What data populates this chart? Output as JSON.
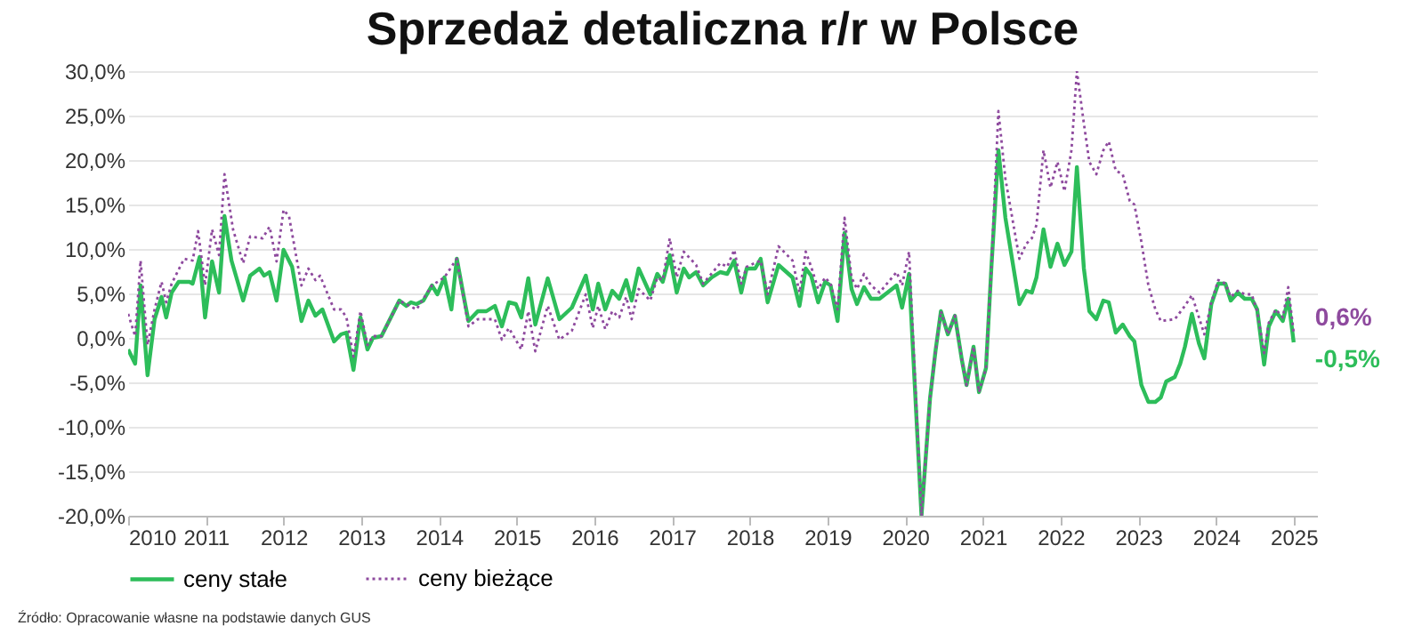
{
  "chart_data": {
    "type": "line",
    "title": "Sprzedaż detaliczna r/r w Polsce",
    "annotations": [
      {
        "text": "-0,5%",
        "x": 2025.0,
        "y": -0.5
      },
      {
        "text": "0,6%",
        "x": 2025.0,
        "y": 0.6
      },
      "Źródło:  Opracowanie własne na podstawie danych GUS"
    ],
    "xlim": [
      2010,
      2025.3
    ],
    "xticks": [
      2010,
      2011,
      2012,
      2013,
      2014,
      2015,
      2016,
      2017,
      2018,
      2019,
      2020,
      2021,
      2022,
      2023,
      2024,
      2025
    ],
    "ylim": [
      -20,
      30
    ],
    "yticks": [
      {
        "value": -20,
        "label": "-20,0%"
      },
      {
        "value": -15,
        "label": "-15,0%"
      },
      {
        "value": -10,
        "label": "-10,0%"
      },
      {
        "value": -5,
        "label": "-5,0%"
      },
      {
        "value": 0,
        "label": "0,0%"
      },
      {
        "value": 5,
        "label": "5,0%"
      },
      {
        "value": 10,
        "label": "10,0%"
      },
      {
        "value": 15,
        "label": "15,0%"
      },
      {
        "value": 20,
        "label": "20,0%"
      },
      {
        "value": 25,
        "label": "25,0%"
      },
      {
        "value": 30,
        "label": "30,0%"
      }
    ],
    "grid": "y",
    "legend": "bottom",
    "marker": "none",
    "series": [
      {
        "name": "ceny stałe",
        "color": "#2dbd5a",
        "line_style": "solid",
        "x": [
          2010.0,
          2010.09,
          2010.16,
          2010.25,
          2010.34,
          2010.43,
          2010.49,
          2010.56,
          2010.65,
          2010.79,
          2010.83,
          2010.92,
          2010.99,
          2011.08,
          2011.17,
          2011.24,
          2011.33,
          2011.48,
          2011.57,
          2011.69,
          2011.75,
          2011.82,
          2011.91,
          2012.0,
          2012.11,
          2012.23,
          2012.32,
          2012.41,
          2012.5,
          2012.65,
          2012.74,
          2012.81,
          2012.9,
          2012.99,
          2013.08,
          2013.15,
          2013.26,
          2013.49,
          2013.58,
          2013.64,
          2013.71,
          2013.8,
          2013.91,
          2013.98,
          2014.07,
          2014.16,
          2014.23,
          2014.32,
          2014.38,
          2014.5,
          2014.61,
          2014.72,
          2014.81,
          2014.9,
          2014.99,
          2015.06,
          2015.15,
          2015.24,
          2015.4,
          2015.55,
          2015.71,
          2015.89,
          2015.98,
          2016.05,
          2016.14,
          2016.23,
          2016.32,
          2016.41,
          2016.48,
          2016.57,
          2016.72,
          2016.81,
          2016.88,
          2016.97,
          2017.06,
          2017.15,
          2017.22,
          2017.31,
          2017.4,
          2017.51,
          2017.62,
          2017.71,
          2017.8,
          2017.89,
          2017.96,
          2018.07,
          2018.14,
          2018.23,
          2018.37,
          2018.55,
          2018.64,
          2018.72,
          2018.79,
          2018.88,
          2018.97,
          2019.04,
          2019.13,
          2019.22,
          2019.31,
          2019.38,
          2019.47,
          2019.56,
          2019.67,
          2019.89,
          2019.96,
          2020.05,
          2020.21,
          2020.32,
          2020.39,
          2020.46,
          2020.55,
          2020.64,
          2020.73,
          2020.79,
          2020.88,
          2020.95,
          2021.04,
          2021.11,
          2021.2,
          2021.29,
          2021.47,
          2021.56,
          2021.63,
          2021.69,
          2021.78,
          2021.87,
          2021.96,
          2022.05,
          2022.14,
          2022.21,
          2022.3,
          2022.37,
          2022.46,
          2022.55,
          2022.62,
          2022.71,
          2022.8,
          2022.89,
          2022.95,
          2023.04,
          2023.13,
          2023.22,
          2023.29,
          2023.36,
          2023.47,
          2023.54,
          2023.6,
          2023.69,
          2023.78,
          2023.85,
          2023.94,
          2024.03,
          2024.12,
          2024.19,
          2024.28,
          2024.37,
          2024.46,
          2024.53,
          2024.62,
          2024.68,
          2024.77,
          2024.86,
          2024.93,
          2025.0
        ],
        "values": [
          -1.3,
          -2.9,
          5.9,
          -4.2,
          2.1,
          4.6,
          2.3,
          5.1,
          6.3,
          6.3,
          6.1,
          9.1,
          2.3,
          8.6,
          5.1,
          13.7,
          8.7,
          4.2,
          7.0,
          7.8,
          7.0,
          7.4,
          4.2,
          9.9,
          8.0,
          1.9,
          4.2,
          2.5,
          3.2,
          -0.4,
          0.4,
          0.6,
          -3.6,
          2.3,
          -1.3,
          0,
          0.2,
          4.2,
          3.6,
          4.0,
          3.8,
          4.2,
          5.9,
          4.9,
          6.8,
          3.2,
          8.9,
          4.6,
          1.9,
          3.0,
          3.0,
          3.6,
          1.3,
          4.0,
          3.8,
          2.3,
          6.7,
          1.5,
          6.7,
          2.1,
          3.4,
          7.0,
          3.2,
          6.1,
          3.2,
          5.3,
          4.4,
          6.5,
          4.2,
          7.8,
          4.9,
          7.2,
          6.3,
          9.3,
          5.1,
          7.8,
          6.8,
          7.4,
          5.9,
          6.8,
          7.4,
          7.2,
          8.7,
          5.1,
          7.8,
          7.8,
          8.9,
          4.0,
          8.2,
          6.8,
          3.6,
          7.8,
          7.0,
          4.0,
          6.3,
          5.9,
          1.9,
          11.8,
          5.5,
          3.8,
          5.7,
          4.4,
          4.4,
          5.9,
          3.4,
          7.2,
          -20.0,
          -6.8,
          -1.5,
          3.0,
          0.4,
          2.5,
          -2.5,
          -5.3,
          -1.0,
          -6.1,
          -3.4,
          8.0,
          21.1,
          13.5,
          3.8,
          5.3,
          5.1,
          6.8,
          12.2,
          8.0,
          10.6,
          8.2,
          9.7,
          19.2,
          7.8,
          3.0,
          2.1,
          4.2,
          4.0,
          0.6,
          1.5,
          0.2,
          -0.4,
          -5.3,
          -7.2,
          -7.2,
          -6.7,
          -4.9,
          -4.4,
          -2.9,
          -1.0,
          2.7,
          -0.6,
          -2.3,
          3.8,
          6.1,
          6.1,
          4.2,
          5.1,
          4.4,
          4.4,
          3.2,
          -3.0,
          1.3,
          3.0,
          1.9,
          4.4,
          -0.5
        ]
      },
      {
        "name": "ceny bieżące",
        "color": "#8e4a9e",
        "line_style": "dotted",
        "x": [
          2010.0,
          2010.09,
          2010.16,
          2010.25,
          2010.34,
          2010.43,
          2010.49,
          2010.56,
          2010.72,
          2010.83,
          2010.9,
          2010.99,
          2011.08,
          2011.17,
          2011.24,
          2011.35,
          2011.48,
          2011.57,
          2011.73,
          2011.82,
          2011.91,
          2012.0,
          2012.07,
          2012.23,
          2012.32,
          2012.41,
          2012.47,
          2012.65,
          2012.74,
          2012.81,
          2012.9,
          2012.99,
          2013.08,
          2013.15,
          2013.26,
          2013.49,
          2013.71,
          2013.91,
          2014.07,
          2014.23,
          2014.38,
          2014.5,
          2014.72,
          2014.81,
          2014.9,
          2015.06,
          2015.15,
          2015.24,
          2015.4,
          2015.55,
          2015.71,
          2015.89,
          2015.98,
          2016.05,
          2016.14,
          2016.23,
          2016.32,
          2016.41,
          2016.48,
          2016.57,
          2016.72,
          2016.81,
          2016.88,
          2016.97,
          2017.06,
          2017.15,
          2017.31,
          2017.4,
          2017.62,
          2017.71,
          2017.8,
          2017.89,
          2017.96,
          2018.14,
          2018.23,
          2018.37,
          2018.55,
          2018.64,
          2018.72,
          2018.79,
          2018.88,
          2018.97,
          2019.04,
          2019.13,
          2019.22,
          2019.31,
          2019.38,
          2019.47,
          2019.56,
          2019.67,
          2019.89,
          2019.96,
          2020.05,
          2020.21,
          2020.32,
          2020.39,
          2020.46,
          2020.55,
          2020.64,
          2020.73,
          2020.79,
          2020.88,
          2020.95,
          2021.04,
          2021.11,
          2021.2,
          2021.29,
          2021.47,
          2021.56,
          2021.63,
          2021.69,
          2021.78,
          2021.87,
          2021.96,
          2022.05,
          2022.14,
          2022.21,
          2022.3,
          2022.37,
          2022.46,
          2022.55,
          2022.62,
          2022.71,
          2022.8,
          2022.89,
          2022.95,
          2023.04,
          2023.13,
          2023.22,
          2023.29,
          2023.47,
          2023.6,
          2023.69,
          2023.85,
          2023.94,
          2024.03,
          2024.12,
          2024.19,
          2024.28,
          2024.37,
          2024.46,
          2024.53,
          2024.62,
          2024.68,
          2024.77,
          2024.86,
          2024.93,
          2025.0
        ],
        "values": [
          2.7,
          0.2,
          8.7,
          -0.8,
          3.2,
          6.3,
          4.0,
          6.1,
          8.9,
          8.7,
          12.0,
          5.9,
          12.2,
          9.3,
          18.4,
          12.2,
          8.4,
          11.4,
          11.2,
          12.5,
          8.6,
          14.4,
          13.7,
          5.9,
          7.8,
          6.5,
          7.0,
          3.2,
          3.2,
          2.3,
          -2.1,
          3.0,
          -0.8,
          0.2,
          0.2,
          4.2,
          3.2,
          5.9,
          6.8,
          8.9,
          1.3,
          2.1,
          2.1,
          -0.2,
          1.1,
          -1.3,
          3.0,
          -1.5,
          3.6,
          -0.2,
          0.8,
          4.9,
          1.1,
          3.6,
          1.0,
          3.0,
          2.3,
          4.6,
          2.1,
          5.5,
          4.2,
          6.8,
          6.5,
          11.2,
          6.8,
          9.7,
          8.2,
          6.1,
          8.4,
          8.0,
          9.9,
          6.1,
          8.0,
          8.7,
          4.9,
          10.3,
          8.7,
          5.1,
          9.7,
          8.0,
          5.5,
          6.8,
          6.1,
          3.2,
          13.5,
          6.8,
          5.5,
          7.2,
          5.9,
          5.1,
          7.4,
          5.9,
          9.7,
          -20.0,
          -6.8,
          -1.5,
          3.0,
          0.4,
          2.5,
          -2.5,
          -5.3,
          -1.0,
          -6.1,
          -3.4,
          8.0,
          25.5,
          17.9,
          8.9,
          10.6,
          11.2,
          12.7,
          21.1,
          16.9,
          19.8,
          16.5,
          21.1,
          30.0,
          24.1,
          19.8,
          18.4,
          21.1,
          22.1,
          18.8,
          18.4,
          15.4,
          15.0,
          10.8,
          5.9,
          3.2,
          1.9,
          2.1,
          3.6,
          4.8,
          0.4,
          4.0,
          6.5,
          6.1,
          4.6,
          5.3,
          4.9,
          4.9,
          3.0,
          -1.7,
          1.7,
          3.2,
          2.3,
          5.7,
          0.6
        ]
      }
    ]
  }
}
